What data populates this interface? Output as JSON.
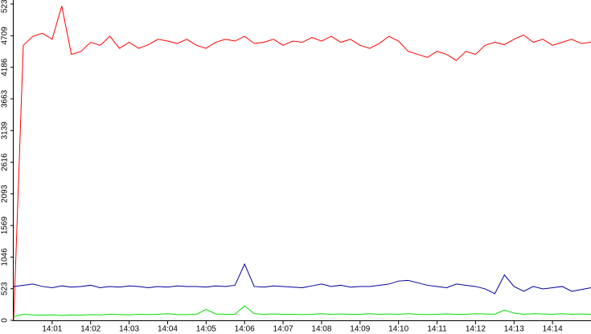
{
  "chart_data": {
    "type": "line",
    "x": [
      0,
      0.25,
      0.5,
      0.75,
      1,
      1.25,
      1.5,
      1.75,
      2,
      2.25,
      2.5,
      2.75,
      3,
      3.25,
      3.5,
      3.75,
      4,
      4.25,
      4.5,
      4.75,
      5,
      5.25,
      5.5,
      5.75,
      6,
      6.25,
      6.5,
      6.75,
      7,
      7.25,
      7.5,
      7.75,
      8,
      8.25,
      8.5,
      8.75,
      9,
      9.25,
      9.5,
      9.75,
      10,
      10.25,
      10.5,
      10.75,
      11,
      11.25,
      11.5,
      11.75,
      12,
      12.25,
      12.5,
      12.75,
      13,
      13.25,
      13.5,
      13.75,
      14,
      14.25,
      14.5,
      14.75,
      15
    ],
    "series": [
      {
        "color": "#ff0000",
        "values": [
          0,
          4550,
          4700,
          4750,
          4650,
          5200,
          4400,
          4450,
          4600,
          4550,
          4700,
          4500,
          4600,
          4500,
          4560,
          4650,
          4620,
          4580,
          4650,
          4550,
          4500,
          4600,
          4650,
          4620,
          4700,
          4580,
          4600,
          4650,
          4550,
          4620,
          4600,
          4680,
          4620,
          4700,
          4600,
          4650,
          4550,
          4500,
          4580,
          4700,
          4620,
          4450,
          4400,
          4350,
          4450,
          4400,
          4300,
          4450,
          4400,
          4550,
          4600,
          4560,
          4650,
          4720,
          4600,
          4650,
          4550,
          4600,
          4650,
          4580,
          4600
        ]
      },
      {
        "color": "#0000a0",
        "values": [
          560,
          580,
          600,
          560,
          540,
          570,
          550,
          560,
          580,
          540,
          560,
          550,
          570,
          560,
          540,
          560,
          550,
          570,
          560,
          560,
          550,
          570,
          560,
          580,
          930,
          560,
          550,
          570,
          560,
          550,
          540,
          570,
          600,
          560,
          580,
          550,
          560,
          560,
          580,
          600,
          650,
          660,
          620,
          580,
          560,
          540,
          600,
          580,
          560,
          520,
          440,
          750,
          560,
          480,
          560,
          520,
          540,
          560,
          480,
          510,
          540
        ]
      },
      {
        "color": "#00e000",
        "values": [
          60,
          100,
          90,
          85,
          90,
          80,
          90,
          85,
          95,
          90,
          100,
          95,
          90,
          100,
          95,
          100,
          110,
          95,
          95,
          100,
          180,
          105,
          100,
          100,
          240,
          110,
          100,
          105,
          100,
          100,
          95,
          100,
          110,
          100,
          105,
          100,
          100,
          110,
          100,
          105,
          100,
          110,
          100,
          95,
          100,
          105,
          100,
          100,
          110,
          105,
          100,
          170,
          120,
          100,
          110,
          105,
          100,
          110,
          100,
          105,
          100
        ]
      }
    ],
    "xlim": [
      0,
      15
    ],
    "xticks": [
      {
        "value": 1,
        "label": "14:01"
      },
      {
        "value": 2,
        "label": "14:02"
      },
      {
        "value": 3,
        "label": "14:03"
      },
      {
        "value": 4,
        "label": "14:04"
      },
      {
        "value": 5,
        "label": "14:05"
      },
      {
        "value": 6,
        "label": "14:06"
      },
      {
        "value": 7,
        "label": "14:07"
      },
      {
        "value": 8,
        "label": "14:08"
      },
      {
        "value": 9,
        "label": "14:09"
      },
      {
        "value": 10,
        "label": "14:10"
      },
      {
        "value": 11,
        "label": "14:11"
      },
      {
        "value": 12,
        "label": "14:12"
      },
      {
        "value": 13,
        "label": "14:13"
      },
      {
        "value": 14,
        "label": "14:14"
      }
    ],
    "ylim": [
      0,
      5233
    ],
    "yticks": [
      0,
      523,
      1046,
      1569,
      2093,
      2616,
      3139,
      3663,
      4186,
      4709,
      5233
    ]
  }
}
